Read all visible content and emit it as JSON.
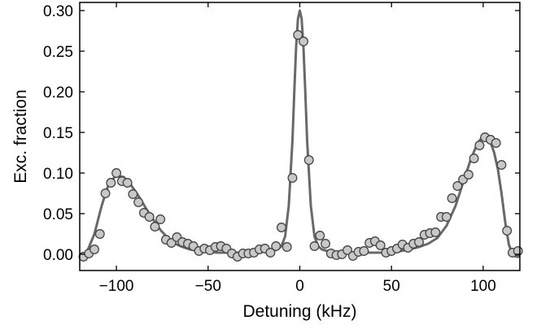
{
  "chart_data": {
    "type": "scatter",
    "title": "",
    "xlabel": "Detuning (kHz)",
    "ylabel": "Exc. fraction",
    "xlim": [
      -120,
      120
    ],
    "ylim": [
      -0.02,
      0.31
    ],
    "x_ticks": [
      -100,
      -50,
      0,
      50,
      100
    ],
    "x_tick_labels": [
      "−100",
      "−50",
      "0",
      "50",
      "100"
    ],
    "y_ticks": [
      0.0,
      0.05,
      0.1,
      0.15,
      0.2,
      0.25,
      0.3
    ],
    "y_tick_labels": [
      "0.00",
      "0.05",
      "0.10",
      "0.15",
      "0.20",
      "0.25",
      "0.30"
    ],
    "grid": false,
    "legend": "none",
    "colors": {
      "marker_fill": "#c8c8c8",
      "marker_edge": "#444444",
      "fit_line": "#696969",
      "axes": "#000000"
    },
    "series": [
      {
        "kind": "markers",
        "x": [
          -118,
          -115,
          -112,
          -109,
          -106,
          -103,
          -100,
          -97,
          -94,
          -91,
          -88,
          -85,
          -82,
          -79,
          -76,
          -73,
          -70,
          -67,
          -64,
          -61,
          -58,
          -55,
          -52,
          -49,
          -46,
          -43,
          -40,
          -37,
          -34,
          -31,
          -28,
          -25,
          -22,
          -19,
          -16,
          -13,
          -10,
          -7,
          -4,
          -1,
          2,
          5,
          8,
          11,
          14,
          17,
          20,
          23,
          26,
          29,
          32,
          35,
          38,
          41,
          44,
          47,
          50,
          53,
          56,
          59,
          62,
          65,
          68,
          71,
          74,
          77,
          80,
          83,
          86,
          89,
          92,
          95,
          98,
          101,
          104,
          107,
          110,
          113,
          116,
          119
        ],
        "y": [
          -0.003,
          0.001,
          0.006,
          0.025,
          0.075,
          0.088,
          0.1,
          0.09,
          0.088,
          0.074,
          0.064,
          0.051,
          0.046,
          0.034,
          0.043,
          0.018,
          0.014,
          0.021,
          0.015,
          0.013,
          0.01,
          0.004,
          0.007,
          0.005,
          0.009,
          0.01,
          0.007,
          0.001,
          -0.003,
          0.001,
          0.001,
          0.002,
          0.006,
          0.007,
          0.002,
          0.01,
          0.033,
          0.009,
          0.094,
          0.27,
          0.262,
          0.116,
          0.01,
          0.023,
          0.013,
          0.001,
          -0.001,
          0.0,
          0.005,
          -0.002,
          0.003,
          0.004,
          0.014,
          0.016,
          0.011,
          0.002,
          0.004,
          0.007,
          0.012,
          0.008,
          0.013,
          0.015,
          0.024,
          0.026,
          0.027,
          0.046,
          0.046,
          0.069,
          0.084,
          0.092,
          0.098,
          0.118,
          0.134,
          0.144,
          0.141,
          0.137,
          0.11,
          0.029,
          0.002,
          0.004
        ]
      },
      {
        "kind": "fit-line",
        "x": [
          -120,
          -116,
          -112,
          -108,
          -104,
          -100,
          -96,
          -92,
          -88,
          -84,
          -80,
          -76,
          -72,
          -68,
          -64,
          -60,
          -55,
          -50,
          -45,
          -40,
          -35,
          -30,
          -25,
          -20,
          -15,
          -12,
          -10,
          -8,
          -6,
          -4,
          -3,
          -2,
          -1,
          0,
          1,
          2,
          3,
          4,
          6,
          8,
          10,
          12,
          15,
          20,
          25,
          30,
          35,
          40,
          45,
          50,
          55,
          60,
          65,
          70,
          75,
          80,
          85,
          90,
          93,
          96,
          98,
          100,
          102,
          104,
          106,
          108,
          110,
          112,
          114,
          116,
          118,
          120
        ],
        "y": [
          -0.005,
          0.003,
          0.025,
          0.06,
          0.088,
          0.097,
          0.095,
          0.085,
          0.072,
          0.057,
          0.043,
          0.03,
          0.02,
          0.013,
          0.009,
          0.006,
          0.004,
          0.003,
          0.002,
          0.002,
          0.002,
          0.002,
          0.002,
          0.003,
          0.004,
          0.006,
          0.01,
          0.022,
          0.06,
          0.14,
          0.2,
          0.255,
          0.29,
          0.3,
          0.29,
          0.255,
          0.2,
          0.14,
          0.06,
          0.022,
          0.01,
          0.006,
          0.004,
          0.003,
          0.002,
          0.002,
          0.002,
          0.002,
          0.002,
          0.003,
          0.004,
          0.006,
          0.009,
          0.013,
          0.02,
          0.035,
          0.06,
          0.095,
          0.115,
          0.132,
          0.14,
          0.145,
          0.143,
          0.138,
          0.125,
          0.105,
          0.075,
          0.04,
          0.012,
          0.0,
          -0.003,
          -0.003
        ]
      }
    ]
  }
}
